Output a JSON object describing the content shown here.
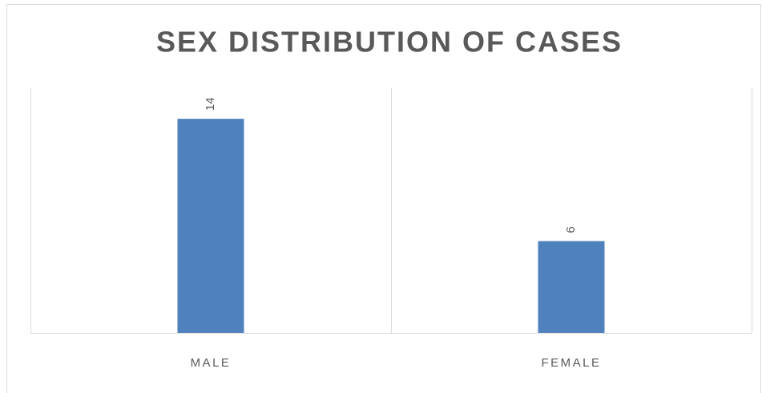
{
  "chart_data": {
    "type": "bar",
    "title": "SEX DISTRIBUTION OF CASES",
    "categories": [
      "MALE",
      "FEMALE"
    ],
    "values": [
      14,
      6
    ],
    "color": "#4f81bd",
    "ylim": [
      0,
      16
    ]
  }
}
